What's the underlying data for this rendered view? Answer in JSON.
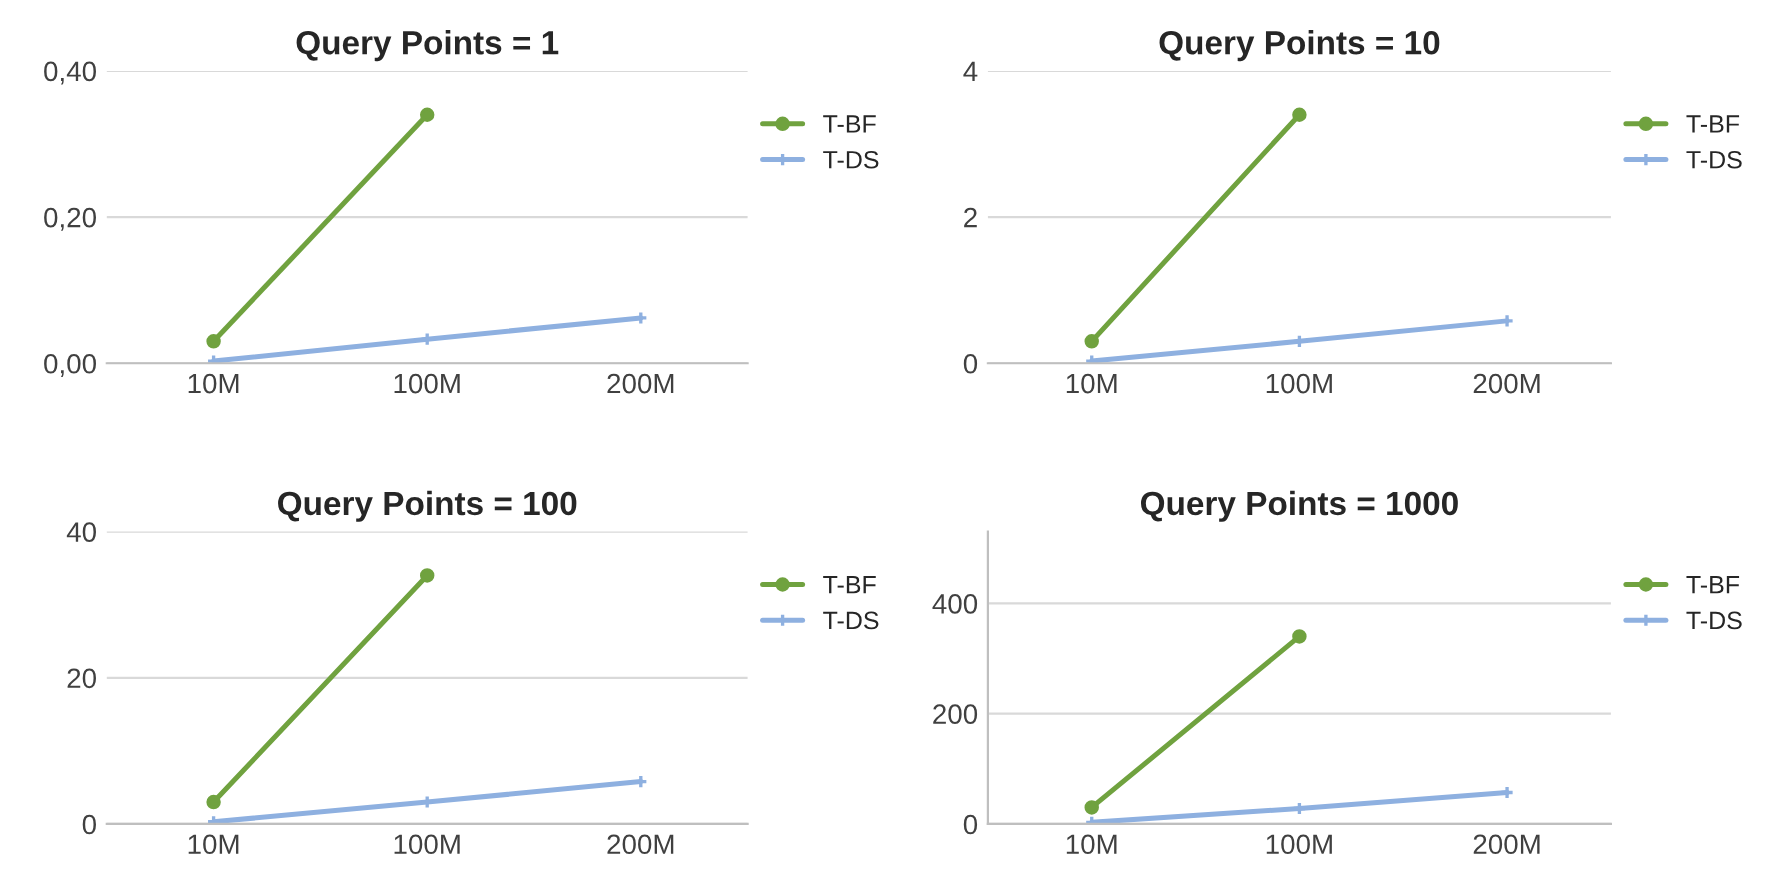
{
  "chart_data": [
    {
      "type": "line",
      "title": "Query Points = 1",
      "categories": [
        "10M",
        "100M",
        "200M"
      ],
      "ylim": [
        0,
        0.4
      ],
      "yticks": [
        {
          "value": 0,
          "label": "0,00"
        },
        {
          "value": 0.2,
          "label": "0,20"
        },
        {
          "value": 0.4,
          "label": "0,40"
        }
      ],
      "grid": "y",
      "legend": "right",
      "series": [
        {
          "name": "T-BF",
          "color": "#70a23f",
          "marker": "circle",
          "values": [
            0.03,
            0.34,
            null
          ]
        },
        {
          "name": "T-DS",
          "color": "#8eb0e0",
          "marker": "cross",
          "values": [
            0.003,
            0.033,
            0.062
          ]
        }
      ]
    },
    {
      "type": "line",
      "title": "Query Points = 10",
      "categories": [
        "10M",
        "100M",
        "200M"
      ],
      "ylim": [
        0,
        4
      ],
      "yticks": [
        0,
        2,
        4
      ],
      "grid": "y",
      "legend": "right",
      "series": [
        {
          "name": "T-BF",
          "color": "#70a23f",
          "marker": "circle",
          "values": [
            0.3,
            3.4,
            null
          ]
        },
        {
          "name": "T-DS",
          "color": "#8eb0e0",
          "marker": "cross",
          "values": [
            0.03,
            0.3,
            0.58
          ]
        }
      ]
    },
    {
      "type": "line",
      "title": "Query Points = 100",
      "categories": [
        "10M",
        "100M",
        "200M"
      ],
      "ylim": [
        0,
        40
      ],
      "yticks": [
        0,
        20,
        40
      ],
      "grid": "y",
      "legend": "right",
      "series": [
        {
          "name": "T-BF",
          "color": "#70a23f",
          "marker": "circle",
          "values": [
            3,
            34,
            null
          ]
        },
        {
          "name": "T-DS",
          "color": "#8eb0e0",
          "marker": "cross",
          "values": [
            0.3,
            3,
            5.8
          ]
        }
      ]
    },
    {
      "type": "line",
      "title": "Query Points = 1000",
      "categories": [
        "10M",
        "100M",
        "200M"
      ],
      "ylim": [
        0,
        530
      ],
      "yticks": [
        0,
        200,
        400
      ],
      "grid": "y",
      "legend": "right",
      "series": [
        {
          "name": "T-BF",
          "color": "#70a23f",
          "marker": "circle",
          "values": [
            30,
            340,
            null
          ]
        },
        {
          "name": "T-DS",
          "color": "#8eb0e0",
          "marker": "cross",
          "values": [
            3,
            28,
            57
          ]
        }
      ]
    }
  ]
}
